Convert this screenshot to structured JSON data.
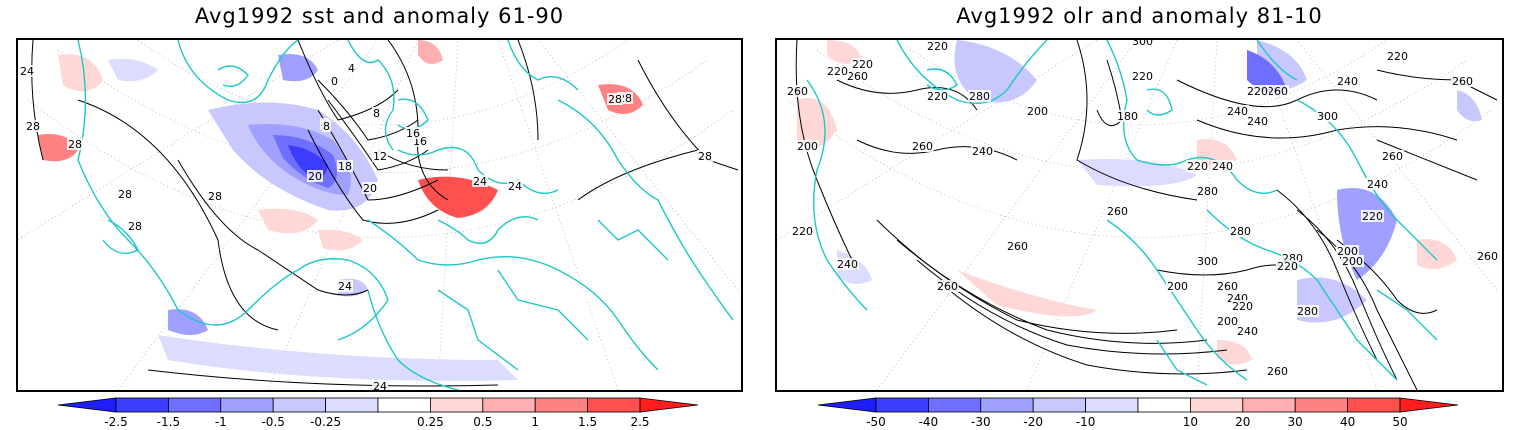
{
  "panels": [
    {
      "title": "Avg1992 sst and anomaly 61-90",
      "contour_labels": [
        "24",
        "28",
        "28",
        "28",
        "28",
        "28",
        "28",
        "0",
        "4",
        "4",
        "8",
        "8",
        "12",
        "16",
        "16",
        "18",
        "20",
        "20",
        "24",
        "24",
        "24",
        "24",
        "28",
        "28"
      ],
      "colorbar": {
        "tick_labels": [
          "-2.5",
          "-1.5",
          "-1",
          "-0.5",
          "-0.25",
          "0.25",
          "0.5",
          "1",
          "1.5",
          "2.5"
        ],
        "colors": [
          "#1e1eff",
          "#3c3cff",
          "#6e6eff",
          "#a0a0ff",
          "#c8c8ff",
          "#dcdcff",
          "#ffffff",
          "#ffd7d7",
          "#ffafaf",
          "#ff8282",
          "#ff5050",
          "#ff1e1e"
        ]
      }
    },
    {
      "title": "Avg1992 olr and anomaly 81-10",
      "contour_labels": [
        "260",
        "220",
        "220",
        "200",
        "220",
        "220",
        "260",
        "280",
        "260",
        "240",
        "300",
        "200",
        "220",
        "180",
        "240",
        "200",
        "240",
        "260",
        "240",
        "220",
        "300",
        "220",
        "260",
        "280",
        "260",
        "240",
        "220",
        "200",
        "260",
        "220",
        "240",
        "260",
        "280",
        "300",
        "280",
        "260",
        "240",
        "220",
        "200",
        "260",
        "240",
        "220",
        "200",
        "220",
        "240",
        "260",
        "280",
        "260"
      ],
      "colorbar": {
        "tick_labels": [
          "-50",
          "-40",
          "-30",
          "-20",
          "-10",
          "10",
          "20",
          "30",
          "40",
          "50"
        ],
        "colors": [
          "#1e1eff",
          "#3c3cff",
          "#6e6eff",
          "#a0a0ff",
          "#c8c8ff",
          "#dcdcff",
          "#ffffff",
          "#ffd7d7",
          "#ffafaf",
          "#ff8282",
          "#ff5050",
          "#ff1e1e"
        ]
      }
    }
  ],
  "coast_color": "#1ec8c8"
}
